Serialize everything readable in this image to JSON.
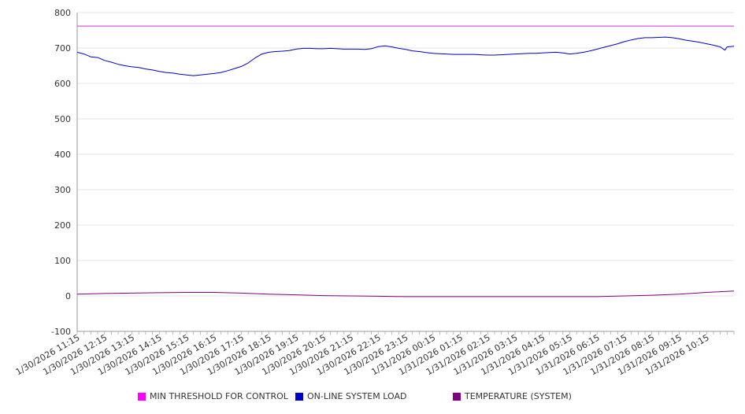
{
  "chart_data": {
    "type": "line",
    "x_ticks": [
      "1/30/2026 11:15",
      "1/30/2026 12:15",
      "1/30/2026 13:15",
      "1/30/2026 14:15",
      "1/30/2026 15:15",
      "1/30/2026 16:15",
      "1/30/2026 17:15",
      "1/30/2026 18:15",
      "1/30/2026 19:15",
      "1/30/2026 20:15",
      "1/30/2026 21:15",
      "1/30/2026 22:15",
      "1/30/2026 23:15",
      "1/31/2026 00:15",
      "1/31/2026 01:15",
      "1/31/2026 02:15",
      "1/31/2026 03:15",
      "1/31/2026 04:15",
      "1/31/2026 05:15",
      "1/31/2026 06:15",
      "1/31/2026 07:15",
      "1/31/2026 08:15",
      "1/31/2026 09:15",
      "1/31/2026 10:15"
    ],
    "x_range": [
      "1/30/2026 11:15",
      "1/31/2026 11:15"
    ],
    "y_ticks": [
      "800",
      "700",
      "600",
      "500",
      "400",
      "300",
      "200",
      "100",
      "0",
      "-100"
    ],
    "ylim": [
      -100,
      800
    ],
    "grid": true,
    "legend_position": "bottom",
    "series": [
      {
        "name": "MIN THRESHOLD FOR CONTROL",
        "color": "#ff00ff",
        "line_color": "#cc33cc",
        "points": [
          [
            "1/30/2026 11:15",
            762
          ],
          [
            "1/31/2026 11:15",
            762
          ]
        ]
      },
      {
        "name": "ON-LINE SYSTEM LOAD",
        "color": "#0000cc",
        "line_color": "#0000cc",
        "points": [
          [
            "1/30/2026 11:15",
            688
          ],
          [
            "1/30/2026 11:30",
            683
          ],
          [
            "1/30/2026 11:45",
            675
          ],
          [
            "1/30/2026 12:00",
            673
          ],
          [
            "1/30/2026 12:15",
            665
          ],
          [
            "1/30/2026 12:30",
            660
          ],
          [
            "1/30/2026 12:45",
            654
          ],
          [
            "1/30/2026 13:00",
            650
          ],
          [
            "1/30/2026 13:15",
            647
          ],
          [
            "1/30/2026 13:30",
            645
          ],
          [
            "1/30/2026 13:45",
            641
          ],
          [
            "1/30/2026 14:00",
            638
          ],
          [
            "1/30/2026 14:15",
            634
          ],
          [
            "1/30/2026 14:30",
            631
          ],
          [
            "1/30/2026 14:45",
            629
          ],
          [
            "1/30/2026 15:00",
            626
          ],
          [
            "1/30/2026 15:15",
            624
          ],
          [
            "1/30/2026 15:30",
            622
          ],
          [
            "1/30/2026 15:45",
            624
          ],
          [
            "1/30/2026 16:00",
            626
          ],
          [
            "1/30/2026 16:15",
            628
          ],
          [
            "1/30/2026 16:30",
            631
          ],
          [
            "1/30/2026 16:45",
            636
          ],
          [
            "1/30/2026 17:00",
            642
          ],
          [
            "1/30/2026 17:15",
            648
          ],
          [
            "1/30/2026 17:30",
            658
          ],
          [
            "1/30/2026 17:45",
            672
          ],
          [
            "1/30/2026 18:00",
            683
          ],
          [
            "1/30/2026 18:15",
            688
          ],
          [
            "1/30/2026 18:30",
            690
          ],
          [
            "1/30/2026 18:45",
            691
          ],
          [
            "1/30/2026 19:00",
            693
          ],
          [
            "1/30/2026 19:15",
            697
          ],
          [
            "1/30/2026 19:30",
            699
          ],
          [
            "1/30/2026 19:45",
            699
          ],
          [
            "1/30/2026 20:00",
            698
          ],
          [
            "1/30/2026 20:15",
            698
          ],
          [
            "1/30/2026 20:30",
            699
          ],
          [
            "1/30/2026 20:45",
            698
          ],
          [
            "1/30/2026 21:00",
            697
          ],
          [
            "1/30/2026 21:15",
            697
          ],
          [
            "1/30/2026 21:30",
            697
          ],
          [
            "1/30/2026 21:45",
            696
          ],
          [
            "1/30/2026 22:00",
            698
          ],
          [
            "1/30/2026 22:15",
            704
          ],
          [
            "1/30/2026 22:30",
            706
          ],
          [
            "1/30/2026 22:45",
            703
          ],
          [
            "1/30/2026 23:00",
            699
          ],
          [
            "1/30/2026 23:15",
            696
          ],
          [
            "1/30/2026 23:30",
            692
          ],
          [
            "1/30/2026 23:45",
            690
          ],
          [
            "1/31/2026 00:00",
            687
          ],
          [
            "1/31/2026 00:15",
            685
          ],
          [
            "1/31/2026 00:30",
            684
          ],
          [
            "1/31/2026 00:45",
            683
          ],
          [
            "1/31/2026 01:00",
            682
          ],
          [
            "1/31/2026 01:15",
            682
          ],
          [
            "1/31/2026 01:30",
            682
          ],
          [
            "1/31/2026 01:45",
            682
          ],
          [
            "1/31/2026 02:00",
            681
          ],
          [
            "1/31/2026 02:15",
            680
          ],
          [
            "1/31/2026 02:30",
            680
          ],
          [
            "1/31/2026 02:45",
            681
          ],
          [
            "1/31/2026 03:00",
            682
          ],
          [
            "1/31/2026 03:15",
            683
          ],
          [
            "1/31/2026 03:30",
            684
          ],
          [
            "1/31/2026 03:45",
            685
          ],
          [
            "1/31/2026 04:00",
            685
          ],
          [
            "1/31/2026 04:15",
            686
          ],
          [
            "1/31/2026 04:30",
            687
          ],
          [
            "1/31/2026 04:45",
            688
          ],
          [
            "1/31/2026 05:00",
            686
          ],
          [
            "1/31/2026 05:15",
            683
          ],
          [
            "1/31/2026 05:30",
            685
          ],
          [
            "1/31/2026 05:45",
            688
          ],
          [
            "1/31/2026 06:00",
            692
          ],
          [
            "1/31/2026 06:15",
            697
          ],
          [
            "1/31/2026 06:30",
            702
          ],
          [
            "1/31/2026 06:45",
            707
          ],
          [
            "1/31/2026 07:00",
            712
          ],
          [
            "1/31/2026 07:15",
            718
          ],
          [
            "1/31/2026 07:30",
            723
          ],
          [
            "1/31/2026 07:45",
            727
          ],
          [
            "1/31/2026 08:00",
            729
          ],
          [
            "1/31/2026 08:15",
            729
          ],
          [
            "1/31/2026 08:30",
            730
          ],
          [
            "1/31/2026 08:45",
            731
          ],
          [
            "1/31/2026 09:00",
            729
          ],
          [
            "1/31/2026 09:15",
            726
          ],
          [
            "1/31/2026 09:30",
            722
          ],
          [
            "1/31/2026 09:45",
            719
          ],
          [
            "1/31/2026 10:00",
            716
          ],
          [
            "1/31/2026 10:15",
            712
          ],
          [
            "1/31/2026 10:30",
            708
          ],
          [
            "1/31/2026 10:45",
            703
          ],
          [
            "1/31/2026 10:55",
            694
          ],
          [
            "1/31/2026 11:00",
            703
          ],
          [
            "1/31/2026 11:15",
            705
          ]
        ]
      },
      {
        "name": "TEMPERATURE (SYSTEM)",
        "color": "#800080",
        "line_color": "#800080",
        "points": [
          [
            "1/30/2026 11:15",
            5
          ],
          [
            "1/30/2026 12:15",
            7
          ],
          [
            "1/30/2026 13:15",
            8
          ],
          [
            "1/30/2026 14:15",
            9
          ],
          [
            "1/30/2026 15:15",
            10
          ],
          [
            "1/30/2026 16:15",
            10
          ],
          [
            "1/30/2026 17:15",
            8
          ],
          [
            "1/30/2026 18:15",
            5
          ],
          [
            "1/30/2026 19:15",
            3
          ],
          [
            "1/30/2026 20:15",
            1
          ],
          [
            "1/30/2026 21:15",
            0
          ],
          [
            "1/30/2026 22:15",
            -1
          ],
          [
            "1/30/2026 23:15",
            -2
          ],
          [
            "1/31/2026 00:15",
            -2
          ],
          [
            "1/31/2026 01:15",
            -2
          ],
          [
            "1/31/2026 02:15",
            -2
          ],
          [
            "1/31/2026 03:15",
            -2
          ],
          [
            "1/31/2026 04:15",
            -2
          ],
          [
            "1/31/2026 05:15",
            -2
          ],
          [
            "1/31/2026 06:15",
            -2
          ],
          [
            "1/31/2026 07:15",
            0
          ],
          [
            "1/31/2026 08:15",
            2
          ],
          [
            "1/31/2026 09:15",
            5
          ],
          [
            "1/31/2026 10:15",
            10
          ],
          [
            "1/31/2026 11:15",
            14
          ]
        ]
      }
    ]
  }
}
